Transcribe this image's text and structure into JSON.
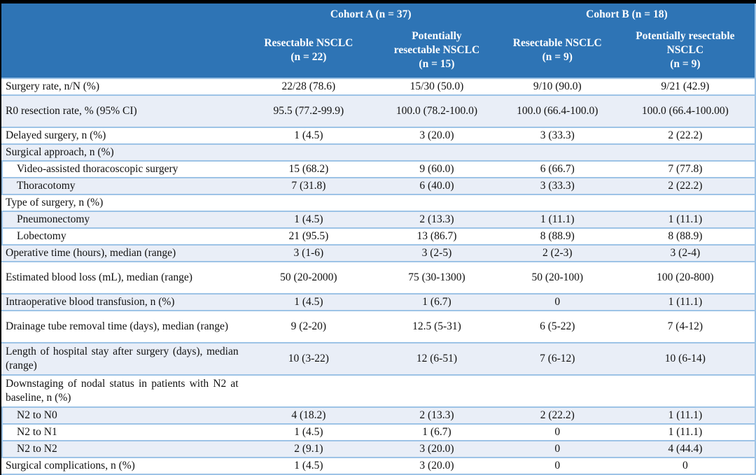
{
  "table": {
    "header": {
      "groups": [
        {
          "label": "Cohort A (n = 37)",
          "span": 2
        },
        {
          "label": "Cohort B (n = 18)",
          "span": 2
        }
      ],
      "columns": [
        "Resectable NSCLC\n(n = 22)",
        "Potentially\nresectable NSCLC\n(n = 15)",
        "Resectable NSCLC\n(n = 9)",
        "Potentially resectable\nNSCLC\n(n = 9)"
      ]
    },
    "rows": [
      {
        "label": "Surgery rate, n/N (%)",
        "indent": false,
        "tall": false,
        "values": [
          "22/28 (78.6)",
          "15/30 (50.0)",
          "9/10 (90.0)",
          "9/21 (42.9)"
        ]
      },
      {
        "label": "R0 resection rate, % (95% CI)",
        "indent": false,
        "tall": true,
        "values": [
          "95.5 (77.2-99.9)",
          "100.0 (78.2-100.0)",
          "100.0 (66.4-100.0)",
          "100.0 (66.4-100.00)"
        ]
      },
      {
        "label": "Delayed surgery, n (%)",
        "indent": false,
        "tall": false,
        "values": [
          "1 (4.5)",
          "3 (20.0)",
          "3 (33.3)",
          "2 (22.2)"
        ]
      },
      {
        "label": "Surgical approach, n (%)",
        "indent": false,
        "tall": false,
        "values": [
          "",
          "",
          "",
          ""
        ]
      },
      {
        "label": "Video-assisted thoracoscopic surgery",
        "indent": true,
        "tall": false,
        "values": [
          "15 (68.2)",
          "9 (60.0)",
          "6 (66.7)",
          "7 (77.8)"
        ]
      },
      {
        "label": "Thoracotomy",
        "indent": true,
        "tall": false,
        "values": [
          "7 (31.8)",
          "6 (40.0)",
          "3 (33.3)",
          "2 (22.2)"
        ]
      },
      {
        "label": "Type of surgery, n (%)",
        "indent": false,
        "tall": false,
        "values": [
          "",
          "",
          "",
          ""
        ]
      },
      {
        "label": "Pneumonectomy",
        "indent": true,
        "tall": false,
        "values": [
          "1 (4.5)",
          "2 (13.3)",
          "1 (11.1)",
          "1 (11.1)"
        ]
      },
      {
        "label": "Lobectomy",
        "indent": true,
        "tall": false,
        "values": [
          "21 (95.5)",
          "13 (86.7)",
          "8 (88.9)",
          "8 (88.9)"
        ]
      },
      {
        "label": "Operative time (hours), median (range)",
        "indent": false,
        "tall": false,
        "values": [
          "3 (1-6)",
          "3 (2-5)",
          "2 (2-3)",
          "3 (2-4)"
        ]
      },
      {
        "label": "Estimated blood loss (mL), median (range)",
        "indent": false,
        "tall": true,
        "values": [
          "50 (20-2000)",
          "75 (30-1300)",
          "50 (20-100)",
          "100 (20-800)"
        ]
      },
      {
        "label": "Intraoperative blood transfusion, n (%)",
        "indent": false,
        "tall": false,
        "values": [
          "1 (4.5)",
          "1 (6.7)",
          "0",
          "1 (11.1)"
        ]
      },
      {
        "label": "Drainage tube removal time (days), median (range)",
        "indent": false,
        "tall": true,
        "values": [
          "9 (2-20)",
          "12.5 (5-31)",
          "6 (5-22)",
          "7 (4-12)"
        ]
      },
      {
        "label": "Length of hospital stay after surgery (days), median (range)",
        "indent": false,
        "tall": true,
        "values": [
          "10 (3-22)",
          "12 (6-51)",
          "7 (6-12)",
          "10 (6-14)"
        ]
      },
      {
        "label": "Downstaging of nodal status in patients with N2 at baseline, n (%)",
        "indent": false,
        "tall": true,
        "values": [
          "",
          "",
          "",
          ""
        ]
      },
      {
        "label": "N2 to N0",
        "indent": true,
        "tall": false,
        "values": [
          "4 (18.2)",
          "2 (13.3)",
          "2 (22.2)",
          "1 (11.1)"
        ]
      },
      {
        "label": "N2 to N1",
        "indent": true,
        "tall": false,
        "values": [
          "1 (4.5)",
          "1 (6.7)",
          "0",
          "1 (11.1)"
        ]
      },
      {
        "label": "N2 to N2",
        "indent": true,
        "tall": false,
        "values": [
          "2 (9.1)",
          "3 (20.0)",
          "0",
          "4 (44.4)"
        ]
      },
      {
        "label": "Surgical complications, n (%)",
        "indent": false,
        "tall": false,
        "values": [
          "1 (4.5)",
          "3 (20.0)",
          "0",
          "0"
        ]
      }
    ]
  },
  "colors": {
    "header_bg": "#2E74B5",
    "header_text": "#FFFFFF",
    "shaded_row_bg": "#E9EEF7",
    "row_border": "#9DC3E6",
    "frame_bg": "#000000",
    "body_text": "#111111"
  }
}
